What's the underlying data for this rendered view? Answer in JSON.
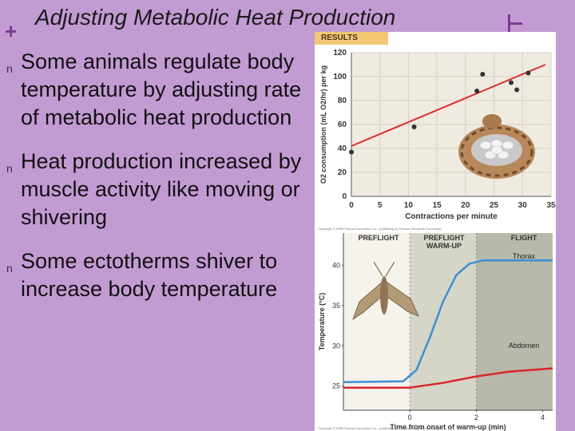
{
  "slide": {
    "title": "Adjusting Metabolic Heat Production",
    "plus_icon": "+",
    "bullet_icon": "n"
  },
  "bullets": [
    {
      "text": "Some animals regulate body temperature by adjusting rate of metabolic heat production"
    },
    {
      "text": "Heat production increased by muscle activity like moving or shivering"
    },
    {
      "text": "Some ectotherms shiver to increase body temperature"
    }
  ],
  "figure": {
    "results_label": "RESULTS",
    "credit1": "Copyright © 2008 Pearson Education, Inc., publishing as Pearson Benjamin Cummings.",
    "credit2": "Copyright © 2008 Pearson Education, Inc., publishing as Pearson Benjamin Cummings."
  },
  "chart_data": [
    {
      "type": "scatter",
      "title": "",
      "xlabel": "Contractions per minute",
      "ylabel": "O2 consumption (mL O2/hr) per kg",
      "xlim": [
        0,
        35
      ],
      "ylim": [
        0,
        120
      ],
      "x_ticks": [
        "0",
        "5",
        "10",
        "15",
        "20",
        "25",
        "30",
        "35"
      ],
      "y_ticks": [
        "0",
        "20",
        "40",
        "60",
        "80",
        "100",
        "120"
      ],
      "points": [
        [
          0,
          37
        ],
        [
          11,
          58
        ],
        [
          22,
          88
        ],
        [
          23,
          102
        ],
        [
          28,
          95
        ],
        [
          29,
          89
        ],
        [
          31,
          103
        ]
      ],
      "trendline": [
        [
          0,
          42
        ],
        [
          34,
          110
        ]
      ],
      "colors": {
        "line": "#e02b2b",
        "points": "#333333",
        "plot_bg": "#f0ebe1",
        "grid": "#d8d0c0"
      }
    },
    {
      "type": "line",
      "title": "",
      "xlabel": "Time from onset of warm-up (min)",
      "ylabel": "Temperature (°C)",
      "xlim": [
        -2,
        4.3
      ],
      "ylim": [
        22,
        44
      ],
      "x_ticks": [
        "0",
        "2",
        "4"
      ],
      "y_ticks": [
        "25",
        "30",
        "35",
        "40"
      ],
      "phases": [
        "PREFLIGHT",
        "PREFLIGHT WARM-UP",
        "FLIGHT"
      ],
      "series": [
        {
          "name": "Thorax",
          "color": "#3d8fd1",
          "points": [
            [
              -2,
              25.5
            ],
            [
              -0.2,
              25.6
            ],
            [
              0.2,
              27
            ],
            [
              0.6,
              31
            ],
            [
              1.0,
              35.5
            ],
            [
              1.4,
              38.8
            ],
            [
              1.8,
              40.2
            ],
            [
              2.2,
              40.6
            ],
            [
              4.3,
              40.6
            ]
          ]
        },
        {
          "name": "Abdomen",
          "color": "#d9262b",
          "points": [
            [
              -2,
              24.8
            ],
            [
              0,
              24.8
            ],
            [
              1,
              25.4
            ],
            [
              2,
              26.2
            ],
            [
              3,
              26.8
            ],
            [
              4.3,
              27.2
            ]
          ]
        }
      ],
      "colors": {
        "preflight_bg": "#f5f3ec",
        "warmup_bg": "#d5d5c8",
        "flight_bg": "#b9b9ab"
      }
    }
  ]
}
